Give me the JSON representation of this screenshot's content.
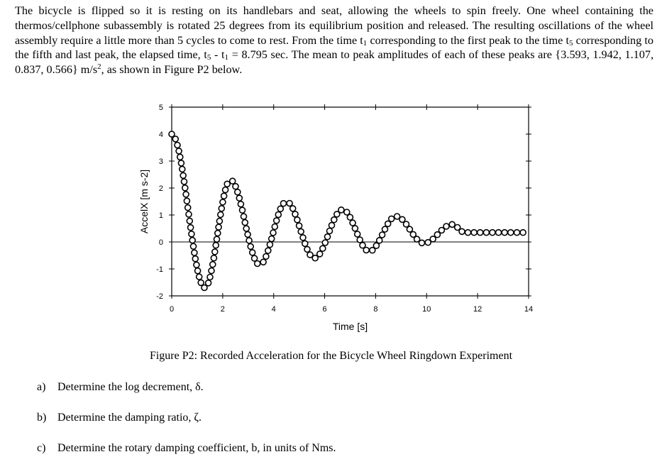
{
  "problem": {
    "p1": "The bicycle is flipped so it is resting on its handlebars and seat, allowing the wheels to spin freely. One wheel containing the thermos/cellphone subassembly is rotated 25 degrees from its equilibrium position and released. The resulting oscillations of the wheel assembly require a little more than 5 cycles to come to rest. From the time t",
    "sub1": "1",
    "p2": " corresponding to the first peak to the time t",
    "sub5": "5",
    "p3": " corresponding to the fifth and last peak, the elapsed time, t",
    "sub5b": "5",
    "p4": " - t",
    "sub1b": "1",
    "p5": " = 8.795 sec. The mean to peak amplitudes of each of these peaks are {3.593, 1.942, 1.107, 0.837, 0.566} m/s",
    "sup2": "2",
    "p6": ", as shown in Figure P2 below."
  },
  "caption": "Figure P2: Recorded Acceleration for the Bicycle Wheel Ringdown Experiment",
  "questions": [
    {
      "label": "a)",
      "text": "Determine the log decrement, δ."
    },
    {
      "label": "b)",
      "text": "Determine the damping ratio, ζ."
    },
    {
      "label": "c)",
      "text": "Determine the rotary damping coefficient, b, in units of Nms."
    }
  ],
  "chart_data": {
    "type": "scatter",
    "title": "",
    "xlabel": "Time [s]",
    "ylabel": "AccelX [m s-2]",
    "xlim": [
      0,
      14
    ],
    "ylim": [
      -2,
      5
    ],
    "xticks": [
      "0",
      "2",
      "4",
      "6",
      "8",
      "10",
      "12",
      "14"
    ],
    "yticks": [
      "-2",
      "-1",
      "0",
      "1",
      "2",
      "3",
      "4",
      "5"
    ],
    "marker": "open-circle",
    "grid": false,
    "envelope": {
      "peak_times_s": [
        0.0,
        2.3,
        4.5,
        6.7,
        8.8,
        11.0
      ],
      "peak_values": [
        4.0,
        2.3,
        1.5,
        1.2,
        0.95,
        0.65
      ],
      "trough_times_s": [
        1.3,
        3.45,
        5.6,
        7.75,
        9.9
      ],
      "trough_values": [
        -1.7,
        -0.85,
        -0.6,
        -0.35,
        -0.05
      ],
      "settle_value": 0.35,
      "settle_start_s": 11.5,
      "end_time_s": 13.8
    }
  }
}
